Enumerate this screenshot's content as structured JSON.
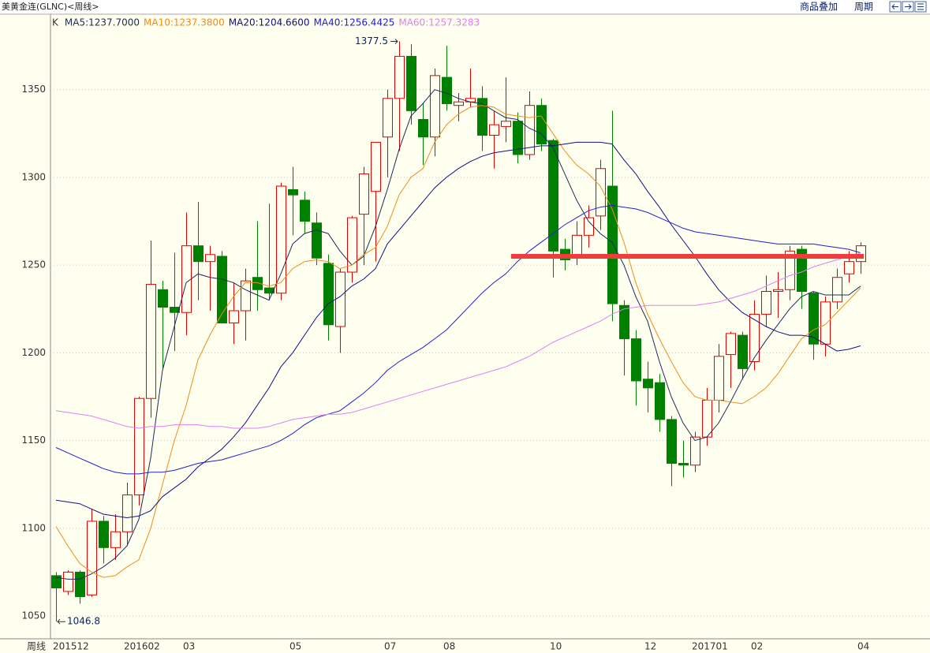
{
  "chart_data": {
    "type": "candlestick",
    "title": "美黄金连(GLNC)<周线>",
    "toolbar": [
      "商品叠加",
      "周期"
    ],
    "legend_k": "K",
    "period_label": "周线",
    "categories": [
      "201512",
      null,
      null,
      null,
      null,
      null,
      "201602",
      null,
      null,
      null,
      null,
      "03",
      null,
      null,
      null,
      null,
      null,
      null,
      null,
      null,
      "05",
      null,
      null,
      null,
      null,
      null,
      null,
      null,
      "07",
      null,
      null,
      null,
      null,
      "08",
      null,
      null,
      null,
      null,
      null,
      null,
      null,
      null,
      "10",
      null,
      null,
      null,
      null,
      null,
      null,
      null,
      "12",
      null,
      null,
      null,
      "201701",
      null,
      null,
      null,
      null,
      "02",
      null,
      null,
      null,
      null,
      null,
      null,
      null,
      null,
      "04"
    ],
    "open": [
      1073,
      1064,
      1075,
      1062,
      1104,
      1089,
      1098,
      1119,
      1174,
      1236,
      1226,
      1223,
      1261,
      1252,
      1255,
      1217,
      1224,
      1243,
      1237,
      1234,
      1293,
      1287,
      1274,
      1251,
      1215,
      1246,
      1279,
      1292,
      1323,
      1345,
      1369,
      1333,
      1323,
      1357,
      1341,
      1343,
      1345,
      1324,
      1329,
      1332,
      1313,
      1341,
      1321,
      1259,
      1254,
      1267,
      1278,
      1295,
      1227,
      1208,
      1185,
      1183,
      1162,
      1137,
      1136,
      1152,
      1173,
      1199,
      1210,
      1195,
      1222,
      1235,
      1236,
      1259,
      1234,
      1205,
      1229,
      1245,
      1252
    ],
    "high": [
      1075,
      1076,
      1076,
      1111,
      1107,
      1108,
      1126,
      1175,
      1264,
      1241,
      1257,
      1280,
      1286,
      1261,
      1258,
      1240,
      1248,
      1275,
      1285,
      1297,
      1306,
      1292,
      1280,
      1256,
      1248,
      1278,
      1306,
      1320,
      1350,
      1377.5,
      1376,
      1342,
      1362,
      1375,
      1348,
      1362,
      1352,
      1338,
      1357,
      1337,
      1349,
      1345,
      1322,
      1265,
      1275,
      1284,
      1310,
      1338,
      1230,
      1213,
      1195,
      1188,
      1164,
      1150,
      1155,
      1180,
      1205,
      1212,
      1212,
      1230,
      1244,
      1246,
      1261,
      1261,
      1235,
      1232,
      1248,
      1258,
      1263
    ],
    "low": [
      1046.8,
      1062,
      1057,
      1061,
      1080,
      1082,
      1090,
      1113,
      1163,
      1191,
      1201,
      1210,
      1230,
      1224,
      1217,
      1205,
      1207,
      1224,
      1230,
      1230,
      1267,
      1268,
      1250,
      1207,
      1200,
      1240,
      1250,
      1252,
      1300,
      1315,
      1330,
      1307,
      1312,
      1338,
      1332,
      1340,
      1315,
      1305,
      1320,
      1308,
      1310,
      1315,
      1243,
      1247,
      1250,
      1260,
      1270,
      1218,
      1187,
      1170,
      1166,
      1155,
      1124,
      1129,
      1132,
      1147,
      1166,
      1180,
      1185,
      1190,
      1215,
      1220,
      1230,
      1225,
      1196,
      1198,
      1225,
      1240,
      1245
    ],
    "close": [
      1066,
      1075,
      1061,
      1104,
      1089,
      1098,
      1119,
      1174,
      1239,
      1226,
      1223,
      1261,
      1252,
      1256,
      1217,
      1224,
      1241,
      1236,
      1234,
      1295,
      1290,
      1275,
      1254,
      1216,
      1246,
      1277,
      1302,
      1320,
      1345,
      1369,
      1338,
      1323,
      1358,
      1342,
      1343,
      1345,
      1324,
      1330,
      1332,
      1313,
      1341,
      1319,
      1258,
      1253,
      1267,
      1277,
      1305,
      1228,
      1208,
      1184,
      1180,
      1162,
      1137,
      1136,
      1152,
      1173,
      1198,
      1211,
      1191,
      1222,
      1235,
      1236,
      1258,
      1235,
      1205,
      1229,
      1243,
      1252,
      1261
    ],
    "up_color": "#e00000",
    "down_color": "#008000",
    "series": [
      {
        "name": "MA5:1237.7000",
        "color": "#1c2b5a",
        "values": [
          1072,
          1071,
          1071,
          1074,
          1078,
          1083,
          1090,
          1105,
          1140,
          1190,
          1215,
          1240,
          1245,
          1243,
          1242,
          1240,
          1236,
          1233,
          1230,
          1245,
          1262,
          1268,
          1270,
          1268,
          1258,
          1250,
          1255,
          1272,
          1293,
          1316,
          1335,
          1342,
          1350,
          1348,
          1345,
          1343,
          1342,
          1338,
          1334,
          1333,
          1328,
          1325,
          1317,
          1302,
          1287,
          1275,
          1268,
          1263,
          1250,
          1232,
          1218,
          1195,
          1175,
          1160,
          1150,
          1152,
          1160,
          1172,
          1185,
          1197,
          1207,
          1216,
          1225,
          1232,
          1235,
          1233,
          1233,
          1233,
          1238
        ]
      },
      {
        "name": "MA10:1237.3800",
        "color": "#f08c1a",
        "values": [
          1101,
          1090,
          1080,
          1075,
          1072,
          1073,
          1078,
          1082,
          1100,
          1125,
          1150,
          1170,
          1196,
          1210,
          1222,
          1232,
          1240,
          1240,
          1238,
          1240,
          1248,
          1252,
          1253,
          1252,
          1248,
          1250,
          1256,
          1260,
          1272,
          1290,
          1300,
          1305,
          1320,
          1330,
          1336,
          1340,
          1341,
          1340,
          1336,
          1335,
          1334,
          1335,
          1325,
          1315,
          1307,
          1302,
          1295,
          1282,
          1263,
          1240,
          1222,
          1208,
          1195,
          1183,
          1175,
          1173,
          1173,
          1172,
          1171,
          1175,
          1180,
          1188,
          1198,
          1208,
          1213,
          1216,
          1223,
          1230,
          1237
        ]
      },
      {
        "name": "MA20:1204.6600",
        "color": "#101080",
        "values": [
          1116,
          1115,
          1114,
          1111,
          1108,
          1107,
          1106,
          1107,
          1110,
          1118,
          1123,
          1128,
          1135,
          1140,
          1145,
          1152,
          1160,
          1170,
          1180,
          1192,
          1200,
          1210,
          1220,
          1228,
          1232,
          1238,
          1242,
          1248,
          1262,
          1270,
          1278,
          1286,
          1294,
          1300,
          1305,
          1309,
          1312,
          1314,
          1315,
          1316,
          1317,
          1318,
          1318,
          1319,
          1320,
          1320,
          1320,
          1319,
          1310,
          1302,
          1292,
          1283,
          1273,
          1264,
          1255,
          1245,
          1236,
          1229,
          1223,
          1219,
          1215,
          1212,
          1210,
          1210,
          1209,
          1205,
          1201,
          1202,
          1204
        ]
      },
      {
        "name": "MA40:1256.4425",
        "color": "#2020d0",
        "values": [
          1146,
          1143,
          1140,
          1137,
          1134,
          1132,
          1131,
          1131,
          1132,
          1132,
          1133,
          1135,
          1137,
          1138,
          1139,
          1141,
          1143,
          1145,
          1147,
          1150,
          1154,
          1159,
          1163,
          1165,
          1167,
          1172,
          1177,
          1183,
          1190,
          1195,
          1199,
          1203,
          1208,
          1213,
          1220,
          1227,
          1234,
          1240,
          1245,
          1252,
          1258,
          1263,
          1268,
          1273,
          1277,
          1281,
          1283,
          1284,
          1283,
          1282,
          1280,
          1277,
          1274,
          1271,
          1269,
          1268,
          1267,
          1266,
          1265,
          1264,
          1263,
          1262,
          1262,
          1262,
          1262,
          1261,
          1260,
          1259,
          1257
        ]
      },
      {
        "name": "MA60:1257.3283",
        "color": "#e080f0",
        "values": [
          1167,
          1166,
          1165,
          1164,
          1162,
          1160,
          1158,
          1157,
          1158,
          1158,
          1159,
          1159,
          1159,
          1158,
          1158,
          1157,
          1157,
          1157,
          1158,
          1160,
          1162,
          1163,
          1164,
          1165,
          1165,
          1166,
          1168,
          1170,
          1172,
          1174,
          1176,
          1178,
          1180,
          1182,
          1184,
          1186,
          1188,
          1190,
          1192,
          1195,
          1198,
          1202,
          1206,
          1209,
          1212,
          1215,
          1218,
          1222,
          1225,
          1226,
          1227,
          1227,
          1227,
          1227,
          1227,
          1228,
          1229,
          1231,
          1233,
          1235,
          1238,
          1241,
          1244,
          1246,
          1249,
          1251,
          1253,
          1255,
          1257
        ]
      }
    ],
    "max_label": 1377.5,
    "min_label": 1046.8,
    "hline": {
      "value": 1255,
      "color": "#f03c3c"
    },
    "ylim": [
      1037,
      1393
    ],
    "yticks": [
      1050,
      1100,
      1150,
      1200,
      1250,
      1300,
      1350
    ],
    "grid": true
  }
}
